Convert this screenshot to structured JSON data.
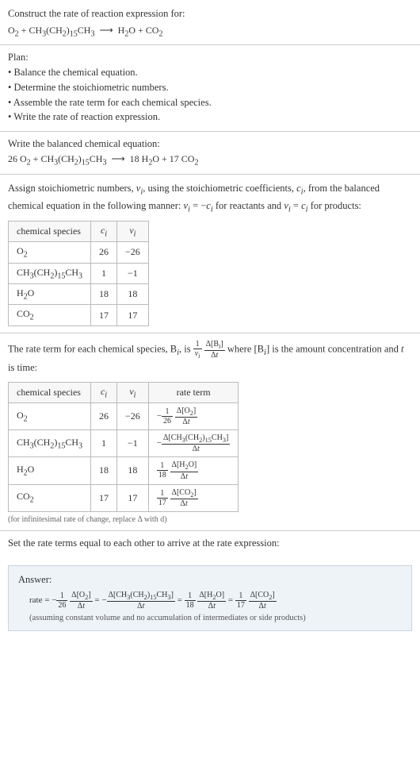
{
  "prompt": {
    "line1": "Construct the rate of reaction expression for:",
    "equation_html": "O<sub>2</sub> + CH<sub>3</sub>(CH<sub>2</sub>)<sub>15</sub>CH<sub>3</sub> &nbsp;⟶&nbsp; H<sub>2</sub>O + CO<sub>2</sub>"
  },
  "plan": {
    "title": "Plan:",
    "items": [
      "• Balance the chemical equation.",
      "• Determine the stoichiometric numbers.",
      "• Assemble the rate term for each chemical species.",
      "• Write the rate of reaction expression."
    ]
  },
  "balanced": {
    "heading": "Write the balanced chemical equation:",
    "equation_html": "26 O<sub>2</sub> + CH<sub>3</sub>(CH<sub>2</sub>)<sub>15</sub>CH<sub>3</sub> &nbsp;⟶&nbsp; 18 H<sub>2</sub>O + 17 CO<sub>2</sub>"
  },
  "stoich": {
    "intro_html": "Assign stoichiometric numbers, <i>ν<sub>i</sub></i>, using the stoichiometric coefficients, <i>c<sub>i</sub></i>, from the balanced chemical equation in the following manner: <i>ν<sub>i</sub></i> = −<i>c<sub>i</sub></i> for reactants and <i>ν<sub>i</sub></i> = <i>c<sub>i</sub></i> for products:",
    "headers": [
      "chemical species",
      "c_i",
      "ν_i"
    ],
    "rows": [
      {
        "species_html": "O<sub>2</sub>",
        "c": "26",
        "nu": "−26"
      },
      {
        "species_html": "CH<sub>3</sub>(CH<sub>2</sub>)<sub>15</sub>CH<sub>3</sub>",
        "c": "1",
        "nu": "−1"
      },
      {
        "species_html": "H<sub>2</sub>O",
        "c": "18",
        "nu": "18"
      },
      {
        "species_html": "CO<sub>2</sub>",
        "c": "17",
        "nu": "17"
      }
    ]
  },
  "rateterm": {
    "intro_html": "The rate term for each chemical species, B<sub><i>i</i></sub>, is <span class='frac'><span class='num'>1</span><span class='den'><i>ν<sub>i</sub></i></span></span> <span class='frac'><span class='num'>Δ[B<sub><i>i</i></sub>]</span><span class='den'>Δ<i>t</i></span></span> where [B<sub><i>i</i></sub>] is the amount concentration and <i>t</i> is time:",
    "headers": [
      "chemical species",
      "c_i",
      "ν_i",
      "rate term"
    ],
    "rows": [
      {
        "species_html": "O<sub>2</sub>",
        "c": "26",
        "nu": "−26",
        "rate_html": "−<span class='frac'><span class='num'>1</span><span class='den'>26</span></span> <span class='frac'><span class='num'>Δ[O<sub>2</sub>]</span><span class='den'>Δ<i>t</i></span></span>"
      },
      {
        "species_html": "CH<sub>3</sub>(CH<sub>2</sub>)<sub>15</sub>CH<sub>3</sub>",
        "c": "1",
        "nu": "−1",
        "rate_html": "−<span class='frac'><span class='num'>Δ[CH<sub>3</sub>(CH<sub>2</sub>)<sub>15</sub>CH<sub>3</sub>]</span><span class='den'>Δ<i>t</i></span></span>"
      },
      {
        "species_html": "H<sub>2</sub>O",
        "c": "18",
        "nu": "18",
        "rate_html": "<span class='frac'><span class='num'>1</span><span class='den'>18</span></span> <span class='frac'><span class='num'>Δ[H<sub>2</sub>O]</span><span class='den'>Δ<i>t</i></span></span>"
      },
      {
        "species_html": "CO<sub>2</sub>",
        "c": "17",
        "nu": "17",
        "rate_html": "<span class='frac'><span class='num'>1</span><span class='den'>17</span></span> <span class='frac'><span class='num'>Δ[CO<sub>2</sub>]</span><span class='den'>Δ<i>t</i></span></span>"
      }
    ],
    "note": "(for infinitesimal rate of change, replace Δ with d)"
  },
  "final": {
    "heading": "Set the rate terms equal to each other to arrive at the rate expression:"
  },
  "answer": {
    "label": "Answer:",
    "eqn_html": "rate = −<span class='frac'><span class='num'>1</span><span class='den'>26</span></span> <span class='frac'><span class='num'>Δ[O<sub>2</sub>]</span><span class='den'>Δ<i>t</i></span></span> = −<span class='frac'><span class='num'>Δ[CH<sub>3</sub>(CH<sub>2</sub>)<sub>15</sub>CH<sub>3</sub>]</span><span class='den'>Δ<i>t</i></span></span> = <span class='frac'><span class='num'>1</span><span class='den'>18</span></span> <span class='frac'><span class='num'>Δ[H<sub>2</sub>O]</span><span class='den'>Δ<i>t</i></span></span> = <span class='frac'><span class='num'>1</span><span class='den'>17</span></span> <span class='frac'><span class='num'>Δ[CO<sub>2</sub>]</span><span class='den'>Δ<i>t</i></span></span>",
    "note": "(assuming constant volume and no accumulation of intermediates or side products)"
  },
  "colors": {
    "border": "#cccccc",
    "answer_bg": "#eef3f8",
    "answer_border": "#c8d4e0",
    "text": "#333333",
    "note": "#666666"
  }
}
